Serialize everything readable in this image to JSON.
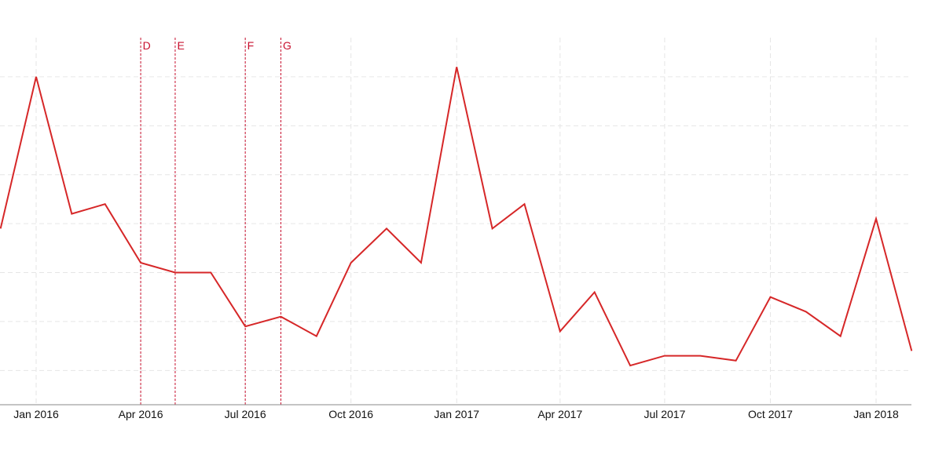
{
  "chart_data": {
    "type": "line",
    "title": "",
    "xlabel": "",
    "ylabel": "",
    "grid": true,
    "x_tick_labels": [
      "Jan 2016",
      "Apr 2016",
      "Jul 2016",
      "Oct 2016",
      "Jan 2017",
      "Apr 2017",
      "Jul 2017",
      "Oct 2017",
      "Jan 2018"
    ],
    "x_tick_dates": [
      "2016-01-01",
      "2016-04-01",
      "2016-07-01",
      "2016-10-01",
      "2017-01-01",
      "2017-04-01",
      "2017-07-01",
      "2017-10-01",
      "2018-01-01"
    ],
    "x": [
      "2015-12-01",
      "2016-01-01",
      "2016-02-01",
      "2016-03-01",
      "2016-04-01",
      "2016-05-01",
      "2016-06-01",
      "2016-07-01",
      "2016-08-01",
      "2016-09-01",
      "2016-10-01",
      "2016-11-01",
      "2016-12-01",
      "2017-01-01",
      "2017-02-01",
      "2017-03-01",
      "2017-04-01",
      "2017-05-01",
      "2017-06-01",
      "2017-07-01",
      "2017-08-01",
      "2017-09-01",
      "2017-10-01",
      "2017-11-01",
      "2017-12-01",
      "2018-01-01",
      "2018-02-01"
    ],
    "series": [
      {
        "values": [
          61,
          92,
          64,
          66,
          54,
          52,
          52,
          41,
          43,
          39,
          54,
          61,
          54,
          94,
          61,
          66,
          40,
          48,
          33,
          35,
          35,
          34,
          47,
          44,
          39,
          63,
          36
        ]
      }
    ],
    "ylim": [
      25,
      100
    ],
    "y_gridlines": [
      32,
      42,
      52,
      62,
      72,
      82,
      92
    ],
    "events": [
      {
        "label": "D",
        "date": "2016-04-01"
      },
      {
        "label": "E",
        "date": "2016-05-01"
      },
      {
        "label": "F",
        "date": "2016-07-01"
      },
      {
        "label": "G",
        "date": "2016-08-01"
      }
    ],
    "colors": {
      "line": "#d62728",
      "event": "#c8102e",
      "grid": "#e6e6e6",
      "axis": "#888888",
      "text": "#111111"
    }
  }
}
